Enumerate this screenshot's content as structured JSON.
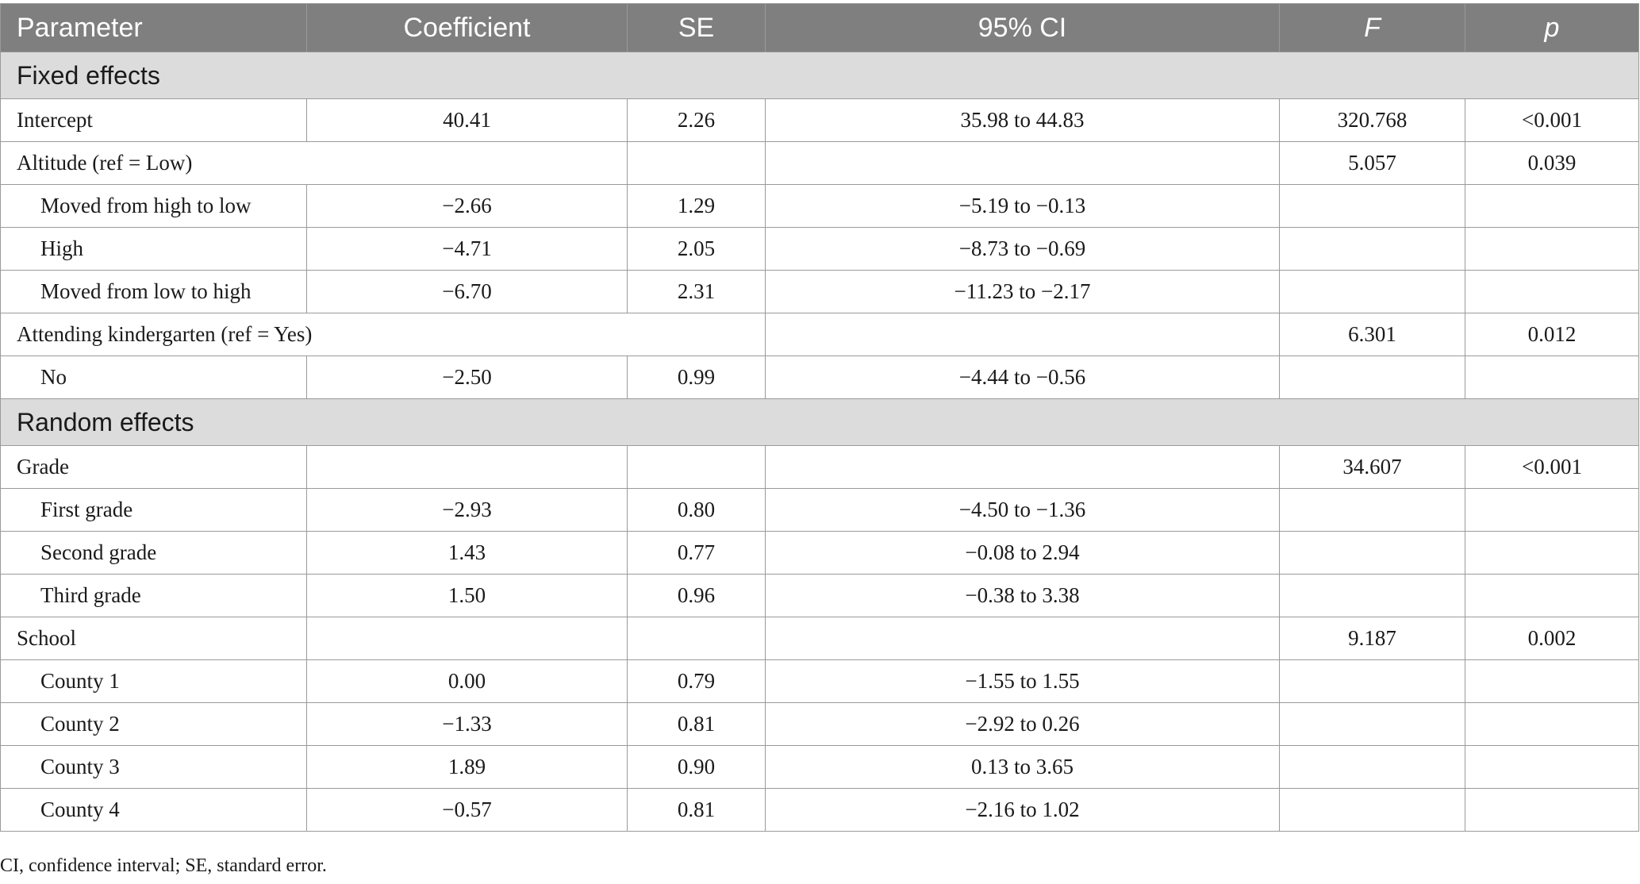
{
  "headers": [
    "Parameter",
    "Coefficient",
    "SE",
    "95% CI",
    "F",
    "p"
  ],
  "sections": [
    {
      "title": "Fixed effects",
      "rows": [
        {
          "label": "Intercept",
          "coef": "40.41",
          "se": "2.26",
          "ci": "35.98 to 44.83",
          "f": "320.768",
          "p": "<0.001"
        },
        {
          "label": "Altitude (ref = Low)",
          "f": "5.057",
          "p": "0.039"
        },
        {
          "label": "Moved from high to low",
          "indent": true,
          "coef": "−2.66",
          "se": "1.29",
          "ci": "−5.19 to −0.13",
          "f": "",
          "p": ""
        },
        {
          "label": "High",
          "indent": true,
          "coef": "−4.71",
          "se": "2.05",
          "ci": "−8.73 to −0.69",
          "f": "",
          "p": ""
        },
        {
          "label": "Moved from low to high",
          "indent": true,
          "coef": "−6.70",
          "se": "2.31",
          "ci": "−11.23 to −2.17",
          "f": "",
          "p": ""
        },
        {
          "label": "Attending kindergarten (ref = Yes)",
          "f": "6.301",
          "p": "0.012"
        },
        {
          "label": "No",
          "indent": true,
          "coef": "−2.50",
          "se": "0.99",
          "ci": "−4.44 to −0.56",
          "f": "",
          "p": ""
        }
      ]
    },
    {
      "title": "Random effects",
      "rows": [
        {
          "label": "Grade",
          "coef": "",
          "se": "",
          "ci": "",
          "f": "34.607",
          "p": "<0.001"
        },
        {
          "label": "First grade",
          "indent": true,
          "coef": "−2.93",
          "se": "0.80",
          "ci": "−4.50 to −1.36",
          "f": "",
          "p": ""
        },
        {
          "label": "Second grade",
          "indent": true,
          "coef": "1.43",
          "se": "0.77",
          "ci": "−0.08 to 2.94",
          "f": "",
          "p": ""
        },
        {
          "label": "Third grade",
          "indent": true,
          "coef": "1.50",
          "se": "0.96",
          "ci": "−0.38 to 3.38",
          "f": "",
          "p": ""
        },
        {
          "label": "School",
          "coef": "",
          "se": "",
          "ci": "",
          "f": "9.187",
          "p": "0.002"
        },
        {
          "label": "County 1",
          "indent": true,
          "coef": "0.00",
          "se": "0.79",
          "ci": "−1.55 to 1.55",
          "f": "",
          "p": ""
        },
        {
          "label": "County 2",
          "indent": true,
          "coef": "−1.33",
          "se": "0.81",
          "ci": "−2.92 to 0.26",
          "f": "",
          "p": ""
        },
        {
          "label": "County 3",
          "indent": true,
          "coef": "1.89",
          "se": "0.90",
          "ci": "0.13 to 3.65",
          "f": "",
          "p": ""
        },
        {
          "label": "County 4",
          "indent": true,
          "coef": "−0.57",
          "se": "0.81",
          "ci": "−2.16 to 1.02",
          "f": "",
          "p": ""
        }
      ]
    }
  ],
  "footnote": "CI, confidence interval; SE, standard error."
}
